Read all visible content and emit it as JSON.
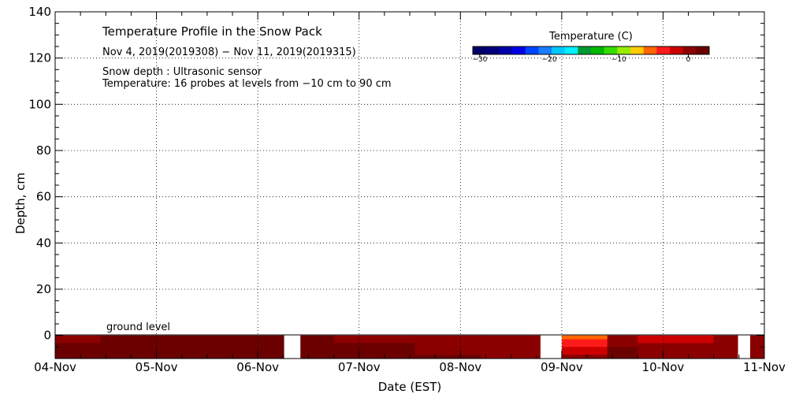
{
  "colors": {
    "no_data": "#ffffff",
    "scale": [
      "#000066",
      "#00007a",
      "#0000aa",
      "#0000e6",
      "#0044ff",
      "#1a7dff",
      "#00c8ff",
      "#00f0ff",
      "#009933",
      "#00b800",
      "#33dd00",
      "#99ee00",
      "#ffcc00",
      "#ff6600",
      "#ff1a1a",
      "#cc0000",
      "#8b0000",
      "#6b0000"
    ]
  },
  "chart_data": {
    "type": "heatmap",
    "title": "Temperature Profile in the Snow Pack",
    "subtitle": "Nov  4, 2019(2019308) − Nov 11, 2019(2019315)",
    "info_lines": [
      "Snow depth : Ultrasonic sensor",
      "Temperature: 16 probes at levels from −10 cm to 90 cm"
    ],
    "xlabel": "Date (EST)",
    "ylabel": "Depth, cm",
    "x_ticks": [
      "04-Nov",
      "05-Nov",
      "06-Nov",
      "07-Nov",
      "08-Nov",
      "09-Nov",
      "10-Nov",
      "11-Nov"
    ],
    "xlim_days": [
      0,
      7
    ],
    "ylim": [
      -10,
      140
    ],
    "y_ticks": [
      0,
      20,
      40,
      60,
      80,
      100,
      120,
      140
    ],
    "grid": true,
    "reference_line": {
      "value": 0,
      "label": "ground level"
    },
    "colorbar": {
      "title": "Temperature (C)",
      "range": [
        -31,
        3
      ],
      "tick_values": [
        -30,
        -20,
        -10,
        0
      ],
      "tick_labels": [
        "−30",
        "−20",
        "−10",
        "0"
      ]
    },
    "missing_data": [
      {
        "start_day": 2.26,
        "end_day": 2.42
      },
      {
        "start_day": 4.79,
        "end_day": 5.0
      },
      {
        "start_day": 6.74,
        "end_day": 6.86
      }
    ],
    "temperature_segments": [
      {
        "start_day": 0.0,
        "end_day": 0.45,
        "top_temp": 0.8,
        "bottom_temp": 2.0
      },
      {
        "start_day": 0.45,
        "end_day": 2.26,
        "top_temp": 2.2,
        "bottom_temp": 2.2
      },
      {
        "start_day": 2.42,
        "end_day": 2.75,
        "top_temp": 2.2,
        "bottom_temp": 2.2
      },
      {
        "start_day": 2.75,
        "end_day": 3.55,
        "top_temp": 0.8,
        "bottom_temp": 2.0
      },
      {
        "start_day": 3.55,
        "end_day": 4.2,
        "top_temp": -0.3,
        "bottom_temp": 1.4
      },
      {
        "start_day": 4.2,
        "end_day": 4.79,
        "top_temp": 0.5,
        "bottom_temp": 1.0
      },
      {
        "start_day": 5.0,
        "end_day": 5.45,
        "top_temp": -6.0,
        "bottom_temp": 0.5
      },
      {
        "start_day": 5.45,
        "end_day": 5.75,
        "top_temp": 0.8,
        "bottom_temp": 1.5
      },
      {
        "start_day": 5.75,
        "end_day": 6.5,
        "top_temp": -1.5,
        "bottom_temp": 0.8
      },
      {
        "start_day": 6.5,
        "end_day": 6.74,
        "top_temp": 0.5,
        "bottom_temp": 0.8
      },
      {
        "start_day": 6.86,
        "end_day": 7.0,
        "top_temp": 0.5,
        "bottom_temp": 0.8
      }
    ]
  }
}
